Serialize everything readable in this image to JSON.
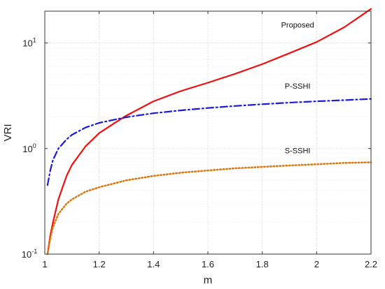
{
  "chart_data": {
    "type": "line",
    "title": "",
    "xlabel": "m",
    "ylabel": "VRI",
    "xlim": [
      1.0,
      2.2
    ],
    "ylim": [
      0.1,
      20
    ],
    "yscale": "log",
    "grid": true,
    "x_ticks": [
      {
        "value": 1.0,
        "label": "1"
      },
      {
        "value": 1.2,
        "label": "1.2"
      },
      {
        "value": 1.4,
        "label": "1.4"
      },
      {
        "value": 1.6,
        "label": "1.6"
      },
      {
        "value": 1.8,
        "label": "1.8"
      },
      {
        "value": 2.0,
        "label": "2"
      },
      {
        "value": 2.2,
        "label": "2.2"
      }
    ],
    "y_ticks": [
      {
        "value": 0.1,
        "base": "10",
        "exp": "-1"
      },
      {
        "value": 1,
        "base": "10",
        "exp": "0"
      },
      {
        "value": 10,
        "base": "10",
        "exp": "1"
      }
    ],
    "series": [
      {
        "name": "Proposed",
        "color": "#ee1111",
        "style": "solid",
        "x": [
          1.01,
          1.02,
          1.03,
          1.05,
          1.08,
          1.1,
          1.15,
          1.2,
          1.25,
          1.3,
          1.4,
          1.5,
          1.6,
          1.7,
          1.8,
          1.9,
          2.0,
          2.1,
          2.2
        ],
        "y": [
          0.1,
          0.15,
          0.2,
          0.33,
          0.55,
          0.7,
          1.05,
          1.4,
          1.7,
          2.05,
          2.8,
          3.5,
          4.2,
          5.1,
          6.3,
          8.0,
          10.2,
          14.0,
          21.0
        ]
      },
      {
        "name": "P-SSHI",
        "color": "#1a1adb",
        "style": "dashdot",
        "x": [
          1.01,
          1.02,
          1.03,
          1.05,
          1.08,
          1.1,
          1.15,
          1.2,
          1.3,
          1.4,
          1.5,
          1.6,
          1.7,
          1.8,
          1.9,
          2.0,
          2.1,
          2.2
        ],
        "y": [
          0.45,
          0.62,
          0.78,
          1.0,
          1.22,
          1.35,
          1.58,
          1.75,
          1.98,
          2.16,
          2.3,
          2.42,
          2.53,
          2.63,
          2.72,
          2.8,
          2.87,
          2.95
        ]
      },
      {
        "name": "S-SSHI",
        "color": "#d97a14",
        "style": "dotted",
        "x": [
          1.01,
          1.02,
          1.03,
          1.05,
          1.08,
          1.1,
          1.15,
          1.2,
          1.3,
          1.4,
          1.5,
          1.6,
          1.7,
          1.8,
          1.9,
          2.0,
          2.1,
          2.2
        ],
        "y": [
          0.1,
          0.14,
          0.18,
          0.24,
          0.3,
          0.33,
          0.39,
          0.43,
          0.5,
          0.55,
          0.59,
          0.62,
          0.65,
          0.67,
          0.69,
          0.71,
          0.73,
          0.74
        ]
      }
    ],
    "annotations": [
      {
        "text": "Proposed",
        "x": 1.93,
        "y": 14.0
      },
      {
        "text": "P-SSHI",
        "x": 1.93,
        "y": 3.7
      },
      {
        "text": "S-SSHI",
        "x": 1.93,
        "y": 0.9
      }
    ]
  }
}
